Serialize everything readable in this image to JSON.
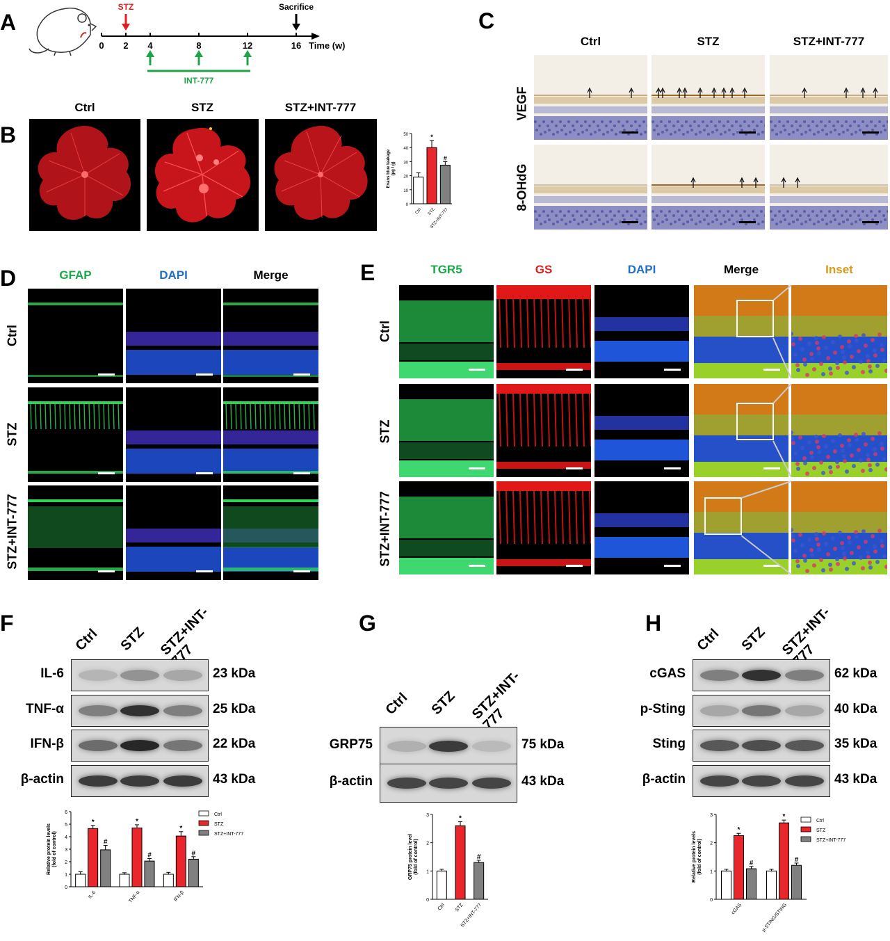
{
  "panels": [
    "A",
    "B",
    "C",
    "D",
    "E",
    "F",
    "G",
    "H"
  ],
  "timeline": {
    "ticks": [
      "0",
      "2",
      "4",
      "8",
      "12",
      "16"
    ],
    "axis_label": "Time (w)",
    "stz": "STZ",
    "sacrifice": "Sacrifice",
    "treatment": "INT-777",
    "colors": {
      "stz": "#e02020",
      "treatment": "#1fa34a",
      "axis": "#000000"
    }
  },
  "groups": [
    "Ctrl",
    "STZ",
    "STZ+INT-777"
  ],
  "panel_c": {
    "rows": [
      "VEGF",
      "8-OHdG"
    ]
  },
  "panel_d": {
    "channels": [
      "GFAP",
      "DAPI",
      "Merge"
    ],
    "rows": [
      "Ctrl",
      "STZ",
      "STZ+INT-777"
    ]
  },
  "panel_e": {
    "channels": [
      "TGR5",
      "GS",
      "DAPI",
      "Merge",
      "Inset"
    ],
    "rows": [
      "Ctrl",
      "STZ",
      "STZ+INT-777"
    ]
  },
  "channel_colors": {
    "GFAP": "#1aa84a",
    "TGR5": "#1aa84a",
    "GS": "#e02020",
    "DAPI": "#1f6fc4",
    "Merge": "#000000",
    "Inset": "#d99a1a"
  },
  "blot_f": {
    "lanes": [
      "Ctrl",
      "STZ",
      "STZ+INT-\n777"
    ],
    "proteins": [
      {
        "name": "IL-6",
        "kda": "23 kDa"
      },
      {
        "name": "TNF-α",
        "kda": "25 kDa"
      },
      {
        "name": "IFN-β",
        "kda": "22 kDa"
      },
      {
        "name": "β-actin",
        "kda": "43 kDa"
      }
    ]
  },
  "blot_g": {
    "lanes": [
      "Ctrl",
      "STZ",
      "STZ+INT-\n777"
    ],
    "proteins": [
      {
        "name": "GRP75",
        "kda": "75 kDa"
      },
      {
        "name": "β-actin",
        "kda": "43 kDa"
      }
    ]
  },
  "blot_h": {
    "lanes": [
      "Ctrl",
      "STZ",
      "STZ+INT-\n777"
    ],
    "proteins": [
      {
        "name": "cGAS",
        "kda": "62 kDa"
      },
      {
        "name": "p-Sting",
        "kda": "40 kDa"
      },
      {
        "name": "Sting",
        "kda": "35 kDa"
      },
      {
        "name": "β-actin",
        "kda": "43 kDa"
      }
    ]
  },
  "chart_data": [
    {
      "id": "B",
      "type": "bar",
      "ylabel": "Evans blue leakage\n(μg / g)",
      "ylim": [
        0,
        50
      ],
      "yticks": [
        0,
        10,
        20,
        30,
        40,
        50
      ],
      "categories": [
        "Ctrl",
        "STZ",
        "STZ+INT-777"
      ],
      "values": [
        19,
        40,
        27.5
      ],
      "errors": [
        3,
        5,
        2.5
      ],
      "annotations": [
        "",
        "*",
        "#"
      ],
      "colors": [
        "#ffffff",
        "#e8262b",
        "#808080"
      ]
    },
    {
      "id": "F",
      "type": "bar",
      "ylabel": "Relative protein levels\n(fold of control)",
      "ylim": [
        0,
        6
      ],
      "yticks": [
        0,
        1,
        2,
        3,
        4,
        5,
        6
      ],
      "categories": [
        "IL-6",
        "TNF-α",
        "IFN-β"
      ],
      "series": [
        {
          "name": "Ctrl",
          "values": [
            1.0,
            1.0,
            1.0
          ],
          "errors": [
            0.2,
            0.12,
            0.15
          ],
          "annotations": [
            "",
            "",
            ""
          ]
        },
        {
          "name": "STZ",
          "values": [
            4.65,
            4.7,
            4.05
          ],
          "errors": [
            0.25,
            0.25,
            0.35
          ],
          "annotations": [
            "*",
            "*",
            "*"
          ]
        },
        {
          "name": "STZ+INT-777",
          "values": [
            2.95,
            2.05,
            2.2
          ],
          "errors": [
            0.35,
            0.2,
            0.2
          ],
          "annotations": [
            "#",
            "#",
            "#"
          ]
        }
      ],
      "colors": [
        "#ffffff",
        "#e8262b",
        "#808080"
      ],
      "legend": "top-right"
    },
    {
      "id": "G",
      "type": "bar",
      "ylabel": "GRP75 protein level\n(fold of control)",
      "ylim": [
        0,
        3
      ],
      "yticks": [
        0,
        1,
        2,
        3
      ],
      "categories": [
        "Ctrl",
        "STZ",
        "STZ+INT-777"
      ],
      "values": [
        1.0,
        2.6,
        1.3
      ],
      "errors": [
        0.06,
        0.14,
        0.08
      ],
      "annotations": [
        "",
        "*",
        "#"
      ],
      "colors": [
        "#ffffff",
        "#e8262b",
        "#808080"
      ]
    },
    {
      "id": "H",
      "type": "bar",
      "ylabel": "Relative protein levels\n(fold of control)",
      "ylim": [
        0,
        3
      ],
      "yticks": [
        0,
        1,
        2,
        3
      ],
      "categories": [
        "cGAS",
        "p-STING/STING"
      ],
      "series": [
        {
          "name": "Ctrl",
          "values": [
            1.0,
            1.0
          ],
          "errors": [
            0.06,
            0.06
          ],
          "annotations": [
            "",
            ""
          ]
        },
        {
          "name": "STZ",
          "values": [
            2.25,
            2.7
          ],
          "errors": [
            0.08,
            0.1
          ],
          "annotations": [
            "*",
            "*"
          ]
        },
        {
          "name": "STZ+INT-777",
          "values": [
            1.08,
            1.2
          ],
          "errors": [
            0.08,
            0.08
          ],
          "annotations": [
            "#",
            "#"
          ]
        }
      ],
      "colors": [
        "#ffffff",
        "#e8262b",
        "#808080"
      ],
      "legend": "top-right"
    }
  ]
}
